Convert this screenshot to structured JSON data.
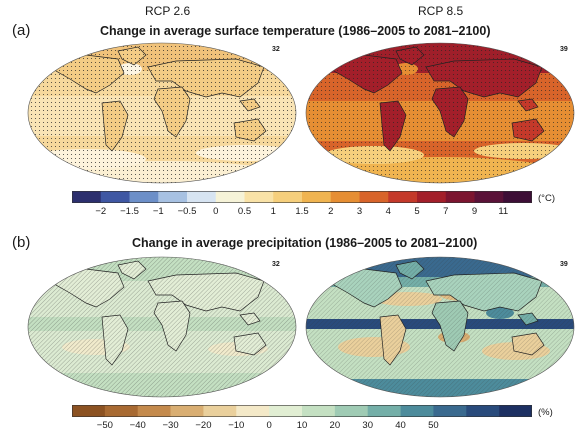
{
  "panel_a": {
    "letter": "(a)",
    "title": "Change in average surface temperature (1986–2005 to 2081–2100)",
    "scenarios": [
      {
        "name": "RCP 2.6",
        "count": "32"
      },
      {
        "name": "RCP 8.5",
        "count": "39"
      }
    ],
    "colorbar": {
      "ticks": [
        "−2",
        "−1.5",
        "−1",
        "−0.5",
        "0",
        "0.5",
        "1",
        "1.5",
        "2",
        "3",
        "4",
        "5",
        "7",
        "9",
        "11"
      ],
      "unit": "(°C)",
      "colors": [
        "#2c2f6e",
        "#3f57a3",
        "#6c8fc8",
        "#a7c1e2",
        "#d7e4f2",
        "#f6f3d8",
        "#f9e2a7",
        "#f6cf7c",
        "#f0b450",
        "#e68e33",
        "#d8642a",
        "#c4392a",
        "#a31f2a",
        "#7c1530",
        "#5a1238",
        "#3d0e36"
      ]
    }
  },
  "panel_b": {
    "letter": "(b)",
    "title": "Change in average precipitation (1986–2005 to 2081–2100)",
    "scenarios": [
      {
        "name": "RCP 2.6",
        "count": "32"
      },
      {
        "name": "RCP 8.5",
        "count": "39"
      }
    ],
    "colorbar": {
      "ticks": [
        "−50",
        "−40",
        "−30",
        "−20",
        "−10",
        "0",
        "10",
        "20",
        "30",
        "40",
        "50"
      ],
      "unit": "(%)",
      "colors": [
        "#8c5222",
        "#a86a32",
        "#c48a4c",
        "#d9ae72",
        "#ead09c",
        "#f4e9c8",
        "#e1eed3",
        "#c4e0c2",
        "#9fcbb4",
        "#74afa8",
        "#4d8c9c",
        "#3a6a8f",
        "#294b7c",
        "#1d3062"
      ]
    }
  }
}
